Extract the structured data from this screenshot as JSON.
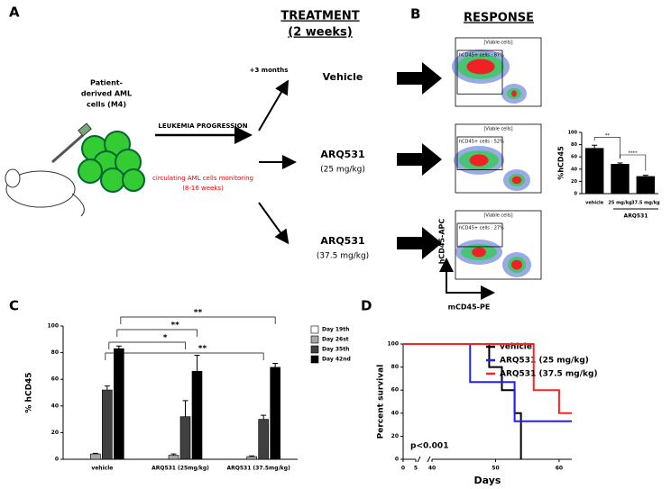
{
  "panel_a": {
    "letter": "A",
    "treatment": "TREATMENT",
    "duration": "(2 weeks)",
    "cells": [
      "Patient-",
      "derived AML",
      "cells (M4)"
    ],
    "progression": "LEUKEMIA PROGRESSION",
    "monitoring": [
      "circulating AML cells monitoring",
      "(8-16 weeks)"
    ],
    "delay": "+3 months",
    "arms": [
      {
        "name": "Vehicle"
      },
      {
        "name": "ARQ531",
        "dose": "(25 mg/kg)"
      },
      {
        "name": "ARQ531",
        "dose": "(37.5 mg/kg)"
      }
    ]
  },
  "panel_b": {
    "letter": "B",
    "title": "RESPONSE",
    "plots": [
      {
        "title": "[Viable cells]",
        "gate": "hCD45+ cells : 87%"
      },
      {
        "title": "[Viable cells]",
        "gate": "hCD45+ cells : 52%"
      },
      {
        "title": "[Viable cells]",
        "gate": "hCD45+ cells : 27%"
      }
    ],
    "y_axis": "hCD45-APC",
    "x_axis": "mCD45-PE"
  },
  "panel_c": {
    "letter": "C"
  },
  "panel_d": {
    "letter": "D"
  },
  "chart_data": [
    {
      "type": "bar",
      "ylabel": "%hCD45",
      "categories": [
        "vehicle",
        "25 mg/kg",
        "37.5 mg/kg"
      ],
      "values": [
        74,
        48,
        28
      ],
      "errors": [
        5,
        2,
        2
      ],
      "color": "#000000",
      "ylim": [
        0,
        100
      ],
      "yticks": [
        0,
        20,
        40,
        60,
        80,
        100
      ],
      "group_label": "ARQ531",
      "annotations": [
        "**",
        "****"
      ]
    },
    {
      "type": "bar",
      "ylabel": "% hCD45",
      "categories": [
        "vehicle",
        "ARQ531 (25mg/kg)",
        "ARQ531 (37.5mg/kg)"
      ],
      "series": [
        {
          "name": "Day 19th",
          "color": "#ffffff",
          "values": [
            0,
            0,
            0
          ],
          "errors": [
            0,
            0,
            0
          ]
        },
        {
          "name": "Day 26st",
          "color": "#a6a6a6",
          "values": [
            4,
            3,
            2
          ],
          "errors": [
            0.5,
            1,
            0.5
          ]
        },
        {
          "name": "Day 35th",
          "color": "#404040",
          "values": [
            52,
            32,
            30
          ],
          "errors": [
            3,
            12,
            3
          ]
        },
        {
          "name": "Day 42nd",
          "color": "#000000",
          "values": [
            83,
            66,
            69
          ],
          "errors": [
            2,
            12,
            3
          ]
        }
      ],
      "ylim": [
        0,
        100
      ],
      "yticks": [
        0,
        20,
        40,
        60,
        80,
        100
      ],
      "legend": "upper right",
      "annotations": [
        "**",
        "**",
        "*",
        "**"
      ]
    },
    {
      "type": "line",
      "step": true,
      "xlabel": "Days",
      "ylabel": "Percent survival",
      "series": [
        {
          "name": "vehicle",
          "color": "#000000",
          "x": [
            0,
            49,
            51,
            53,
            54
          ],
          "values": [
            100,
            80,
            60,
            40,
            0
          ]
        },
        {
          "name": "ARQ531 (25 mg/kg)",
          "color": "#1f1fff",
          "x": [
            0,
            46,
            53,
            62
          ],
          "values": [
            100,
            67,
            33,
            33
          ]
        },
        {
          "name": "ARQ531 (37.5 mg/kg)",
          "color": "#ff2020",
          "x": [
            0,
            56,
            60,
            62
          ],
          "values": [
            100,
            60,
            40,
            40
          ]
        }
      ],
      "xlim": [
        0,
        62
      ],
      "xticks": [
        0,
        5,
        40,
        50,
        60
      ],
      "axis_break": [
        5,
        40
      ],
      "ylim": [
        0,
        100
      ],
      "yticks": [
        0,
        20,
        40,
        60,
        80,
        100
      ],
      "annotation": "p<0.001",
      "legend": "upper right"
    }
  ]
}
